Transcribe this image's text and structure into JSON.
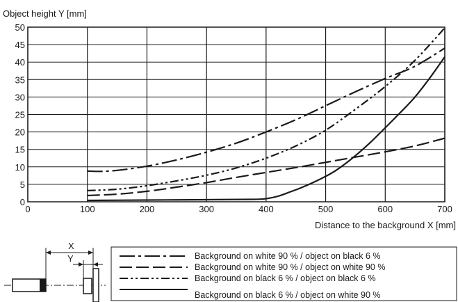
{
  "chart_data": {
    "type": "line",
    "ylabel": "Object height Y [mm]",
    "xlabel": "Distance to the background X [mm]",
    "xlim": [
      0,
      700
    ],
    "ylim": [
      0,
      50
    ],
    "x_ticks": [
      0,
      100,
      200,
      300,
      400,
      500,
      600,
      700
    ],
    "y_ticks": [
      0,
      5,
      10,
      15,
      20,
      25,
      30,
      35,
      40,
      45,
      50
    ],
    "grid": true,
    "legend_position": "bottom-right, below plot",
    "series": [
      {
        "name": "Background on white 90 % / object on black 6 %",
        "line_style": "dash-dot",
        "x": [
          100,
          120,
          150,
          200,
          250,
          300,
          350,
          400,
          450,
          500,
          550,
          600,
          650,
          700
        ],
        "y": [
          8.8,
          8.7,
          9.0,
          10.2,
          12.0,
          14.2,
          16.8,
          20.0,
          23.5,
          27.5,
          31.5,
          35.3,
          38.8,
          44.0
        ]
      },
      {
        "name": "Background on white 90 % / object on white 90 %",
        "line_style": "long-dash",
        "x": [
          100,
          150,
          200,
          250,
          300,
          350,
          400,
          450,
          500,
          550,
          600,
          650,
          700
        ],
        "y": [
          1.8,
          2.2,
          3.0,
          4.2,
          5.5,
          7.0,
          8.4,
          9.8,
          11.3,
          12.8,
          14.3,
          16.0,
          18.2
        ]
      },
      {
        "name": "Background on black 6 % / object on black 6 %",
        "line_style": "dash-dot-dot",
        "x": [
          100,
          150,
          200,
          250,
          300,
          350,
          400,
          450,
          500,
          550,
          600,
          650,
          700
        ],
        "y": [
          3.2,
          3.6,
          4.6,
          6.0,
          7.6,
          9.7,
          12.5,
          16.0,
          20.5,
          26.5,
          33.0,
          40.5,
          49.8
        ]
      },
      {
        "name": "Background on black 6 % / object on white 90 %",
        "line_style": "solid",
        "x": [
          100,
          200,
          300,
          380,
          400,
          420,
          440,
          460,
          480,
          500,
          520,
          550,
          575,
          600,
          625,
          650,
          675,
          700
        ],
        "y": [
          0.4,
          0.5,
          0.6,
          0.7,
          0.9,
          1.6,
          2.8,
          4.1,
          5.6,
          7.3,
          9.3,
          13.2,
          17.0,
          21.2,
          25.5,
          30.0,
          35.5,
          41.5
        ]
      }
    ]
  },
  "diagram": {
    "x_label": "X",
    "y_label": "Y"
  },
  "colors": {
    "line": "#1a1a1a",
    "grid": "#1a1a1a",
    "background": "#ffffff"
  }
}
